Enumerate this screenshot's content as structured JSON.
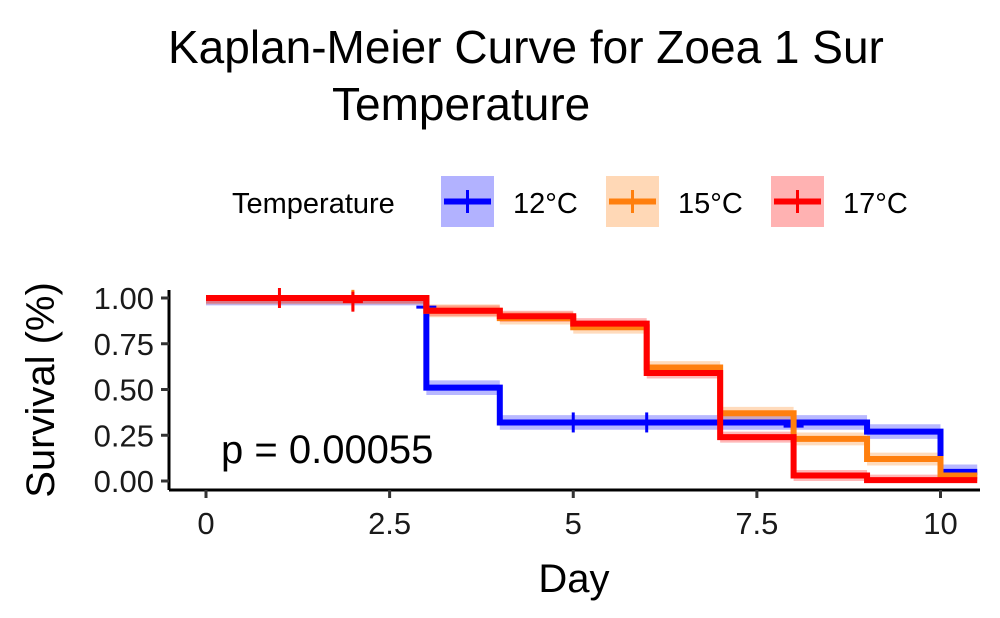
{
  "chart_data": {
    "type": "line",
    "subtype": "kaplan-meier step",
    "title_line1": "Kaplan-Meier Curve for Zoea 1 Sur",
    "title_line2": "Temperature",
    "xlabel": "Day",
    "ylabel": "Survival (%)",
    "xlim": [
      -0.3,
      10.5
    ],
    "ylim": [
      -0.05,
      1.05
    ],
    "x_ticks": [
      0,
      2.5,
      5,
      7.5,
      10
    ],
    "x_tick_labels": [
      "0",
      "2.5",
      "5",
      "7.5",
      "10"
    ],
    "y_ticks": [
      0,
      0.25,
      0.5,
      0.75,
      1
    ],
    "y_tick_labels": [
      "0.00",
      "0.25",
      "0.50",
      "0.75",
      "1.00"
    ],
    "legend": {
      "title": "Temperature",
      "position": "top"
    },
    "annotation": "p = 0.00055",
    "grid": false,
    "series": [
      {
        "name": "12°C",
        "color": "#0000ff",
        "steps": [
          [
            0,
            1.0
          ],
          [
            3,
            0.51
          ],
          [
            4,
            0.32
          ],
          [
            9,
            0.27
          ],
          [
            10,
            0.05
          ],
          [
            10.5,
            0.05
          ]
        ],
        "ci_halfwidth": 0.04,
        "censor": [
          [
            3,
            0.95
          ],
          [
            5,
            0.32
          ],
          [
            6,
            0.32
          ],
          [
            7,
            0.32
          ],
          [
            8,
            0.3
          ]
        ]
      },
      {
        "name": "15°C",
        "color": "#ff7f0e",
        "steps": [
          [
            0,
            1.0
          ],
          [
            3,
            0.93
          ],
          [
            4,
            0.89
          ],
          [
            5,
            0.84
          ],
          [
            6,
            0.62
          ],
          [
            7,
            0.37
          ],
          [
            8,
            0.23
          ],
          [
            9,
            0.12
          ],
          [
            10,
            0.03
          ],
          [
            10.5,
            0.03
          ]
        ],
        "ci_halfwidth": 0.035,
        "censor": [
          [
            2,
            0.99
          ]
        ]
      },
      {
        "name": "17°C",
        "color": "#ff0000",
        "steps": [
          [
            0,
            1.0
          ],
          [
            3,
            0.93
          ],
          [
            4,
            0.9
          ],
          [
            5,
            0.86
          ],
          [
            6,
            0.59
          ],
          [
            7,
            0.24
          ],
          [
            8,
            0.03
          ],
          [
            9,
            0.005
          ],
          [
            10.5,
            0.005
          ]
        ],
        "ci_halfwidth": 0.03,
        "censor": [
          [
            1,
            1.0
          ],
          [
            2,
            0.98
          ]
        ]
      }
    ]
  }
}
